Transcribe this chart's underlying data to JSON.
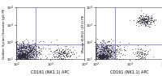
{
  "fig_width": 2.0,
  "fig_height": 0.94,
  "dpi": 100,
  "panels": [
    {
      "xlabel": "CD161 (NK1.1) APC",
      "ylabel": "Golden Syrian Hamster IgG PE",
      "xlim": [
        100,
        10000
      ],
      "ylim": [
        10,
        10000
      ],
      "quadrant_x": 380,
      "quadrant_y": 70
    },
    {
      "xlabel": "CD161 (NK1.1) APC",
      "ylabel": "Mouse KLRG1 (2F1) PE",
      "xlim": [
        100,
        10000
      ],
      "ylim": [
        10,
        10000
      ],
      "quadrant_x": 380,
      "quadrant_y": 70
    }
  ],
  "bg_color": "#ffffff",
  "fig_bg": "#ffffff",
  "scatter_color": "#2b2b3b",
  "scatter_alpha": 0.55,
  "scatter_size": 0.5,
  "blob_color": "#b8aed0",
  "quadrant_color": "#6666bb",
  "quadrant_lw": 0.5,
  "tick_fontsize": 3.0,
  "label_fontsize": 3.5,
  "ylabel_fontsize": 3.0
}
